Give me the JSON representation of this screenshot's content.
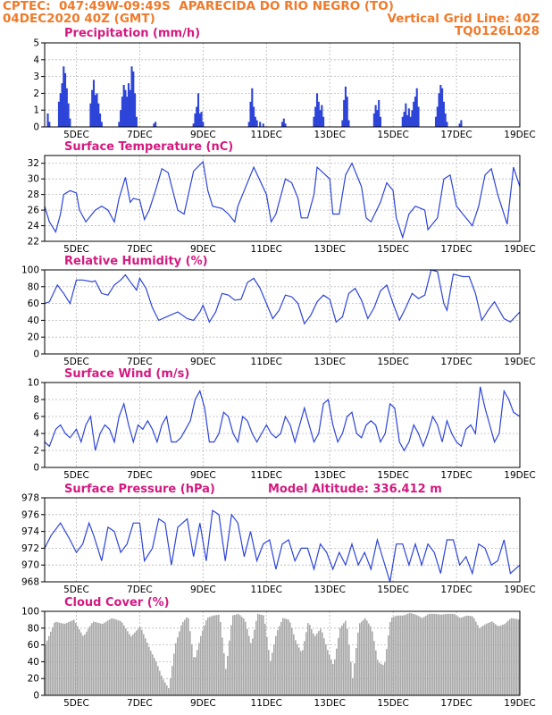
{
  "header": {
    "line1_left": "CPTEC:  047:49W-09:49S  APARECIDA DO RIO NEGRO (TO)",
    "line2_left": "04DEC2020 40Z (GMT)",
    "line2_right": "Vertical Grid Line: 40Z",
    "line3_right": "TQ0126L028"
  },
  "colors": {
    "header": "#f07a2a",
    "title": "#d4197f",
    "line": "#2d44d8",
    "bar": "#2d44d8",
    "cloud": "#a8a8a8"
  },
  "x_labels": [
    "5DEC",
    "7DEC",
    "9DEC",
    "11DEC",
    "13DEC",
    "15DEC",
    "17DEC",
    "19DEC"
  ],
  "chart_data": [
    {
      "type": "bar",
      "title": "Precipitation (mm/h)",
      "ylim": [
        0,
        5
      ],
      "yticks": [
        0,
        1,
        2,
        3,
        4,
        5
      ],
      "x_range_days": [
        4.0,
        19.0
      ],
      "x": [
        4.1,
        4.15,
        4.45,
        4.5,
        4.55,
        4.6,
        4.65,
        4.7,
        4.75,
        4.8,
        5.45,
        5.5,
        5.55,
        5.6,
        5.65,
        5.7,
        5.75,
        5.8,
        6.35,
        6.4,
        6.45,
        6.5,
        6.55,
        6.6,
        6.65,
        6.7,
        6.75,
        6.8,
        6.85,
        6.9,
        7.45,
        7.5,
        8.7,
        8.75,
        8.8,
        8.85,
        8.9,
        8.95,
        9.0,
        10.45,
        10.5,
        10.55,
        10.6,
        10.65,
        10.7,
        10.8,
        10.9,
        11.5,
        11.55,
        11.6,
        12.5,
        12.55,
        12.6,
        12.65,
        12.7,
        12.75,
        12.8,
        13.4,
        13.45,
        13.5,
        13.55,
        13.6,
        14.4,
        14.45,
        14.5,
        14.55,
        14.6,
        15.3,
        15.35,
        15.4,
        15.45,
        15.5,
        15.55,
        15.6,
        15.65,
        15.7,
        15.75,
        15.8,
        16.35,
        16.4,
        16.45,
        16.5,
        16.55,
        16.6,
        16.65,
        16.7,
        17.1,
        17.15
      ],
      "values": [
        0.8,
        0.3,
        1.5,
        2.0,
        2.6,
        3.6,
        3.2,
        2.3,
        1.4,
        0.5,
        1.4,
        2.2,
        2.8,
        1.9,
        2.0,
        1.4,
        0.8,
        0.3,
        0.3,
        1.0,
        1.8,
        2.5,
        2.2,
        1.8,
        2.6,
        2.2,
        3.6,
        3.3,
        2.0,
        0.6,
        0.2,
        0.3,
        0.2,
        0.8,
        1.2,
        2.0,
        0.8,
        0.9,
        0.3,
        0.3,
        1.5,
        2.3,
        1.2,
        0.6,
        0.4,
        0.3,
        0.2,
        0.3,
        0.5,
        0.2,
        0.6,
        1.2,
        2.0,
        1.5,
        1.0,
        1.3,
        0.6,
        0.4,
        1.6,
        2.4,
        1.8,
        0.4,
        0.8,
        1.3,
        1.0,
        1.6,
        0.6,
        0.6,
        0.9,
        1.4,
        0.7,
        1.1,
        0.6,
        1.0,
        1.5,
        1.8,
        2.3,
        1.2,
        0.6,
        1.2,
        2.0,
        2.5,
        2.3,
        1.5,
        0.8,
        0.3,
        0.2,
        0.4
      ]
    },
    {
      "type": "line",
      "title": "Surface Temperature (nC)",
      "ylim": [
        22,
        33
      ],
      "yticks": [
        22,
        24,
        26,
        28,
        30,
        32
      ],
      "x_range_days": [
        4.0,
        19.0
      ],
      "x": [
        4.0,
        4.15,
        4.35,
        4.5,
        4.6,
        4.8,
        5.0,
        5.1,
        5.3,
        5.6,
        5.8,
        6.0,
        6.2,
        6.35,
        6.55,
        6.7,
        6.8,
        7.0,
        7.15,
        7.3,
        7.5,
        7.7,
        7.9,
        8.2,
        8.4,
        8.7,
        9.0,
        9.15,
        9.3,
        9.6,
        9.8,
        10.0,
        10.1,
        10.3,
        10.5,
        10.6,
        11.0,
        11.15,
        11.3,
        11.6,
        11.8,
        12.0,
        12.1,
        12.3,
        12.5,
        12.6,
        13.0,
        13.1,
        13.3,
        13.5,
        13.7,
        14.0,
        14.15,
        14.3,
        14.6,
        14.8,
        15.0,
        15.1,
        15.3,
        15.5,
        15.7,
        16.0,
        16.1,
        16.4,
        16.6,
        16.8,
        17.0,
        17.2,
        17.5,
        17.7,
        17.9,
        18.1,
        18.3,
        18.6,
        18.8,
        19.0
      ],
      "values": [
        26.5,
        24.5,
        23.2,
        25.5,
        28,
        28.5,
        28.2,
        26,
        24.5,
        26,
        26.5,
        26,
        24.5,
        27.5,
        30.2,
        27,
        27.5,
        27.3,
        24.8,
        26,
        28.5,
        31.3,
        30.8,
        26,
        25.5,
        31,
        32.2,
        28.5,
        26.5,
        26.2,
        25.5,
        24.5,
        26.5,
        28.5,
        30.5,
        31.5,
        28,
        24.5,
        25.5,
        30,
        29.5,
        27.5,
        25,
        25,
        28,
        31.5,
        30,
        25.5,
        25.5,
        30.5,
        32,
        29,
        25,
        24.5,
        27,
        29.5,
        28.5,
        25,
        22.5,
        25.5,
        26.5,
        26,
        23.5,
        25,
        30,
        30.5,
        26.5,
        25.5,
        24,
        26.5,
        30.5,
        31.3,
        28,
        24.2,
        31.5,
        29
      ]
    },
    {
      "type": "line",
      "title": "Relative Humidity (%)",
      "ylim": [
        0,
        100
      ],
      "yticks": [
        0,
        20,
        40,
        60,
        80,
        100
      ],
      "x_range_days": [
        4.0,
        19.0
      ],
      "x": [
        4.0,
        4.15,
        4.4,
        4.6,
        4.8,
        5.0,
        5.2,
        5.5,
        5.6,
        5.8,
        6.0,
        6.2,
        6.4,
        6.55,
        6.7,
        6.9,
        7.0,
        7.2,
        7.4,
        7.6,
        7.9,
        8.2,
        8.5,
        8.7,
        8.9,
        9.0,
        9.2,
        9.4,
        9.6,
        9.8,
        10.0,
        10.2,
        10.4,
        10.6,
        10.8,
        11.0,
        11.2,
        11.4,
        11.6,
        11.8,
        12.0,
        12.2,
        12.4,
        12.6,
        12.8,
        13.0,
        13.2,
        13.4,
        13.6,
        13.8,
        14.0,
        14.2,
        14.4,
        14.6,
        14.8,
        15.0,
        15.2,
        15.4,
        15.6,
        15.8,
        16.0,
        16.2,
        16.4,
        16.6,
        16.7,
        16.9,
        17.2,
        17.4,
        17.6,
        17.8,
        18.0,
        18.2,
        18.5,
        18.7,
        19.0
      ],
      "values": [
        60,
        62,
        82,
        72,
        60,
        88,
        88,
        86,
        87,
        72,
        70,
        82,
        88,
        94,
        86,
        76,
        90,
        78,
        55,
        40,
        45,
        50,
        42,
        40,
        50,
        58,
        38,
        50,
        72,
        70,
        64,
        65,
        85,
        90,
        78,
        60,
        42,
        52,
        70,
        68,
        60,
        36,
        46,
        62,
        70,
        65,
        38,
        44,
        72,
        78,
        64,
        42,
        55,
        75,
        82,
        60,
        40,
        55,
        72,
        66,
        70,
        100,
        98,
        60,
        52,
        95,
        92,
        92,
        72,
        40,
        52,
        62,
        42,
        38,
        50
      ]
    },
    {
      "type": "line",
      "title": "Surface Wind (m/s)",
      "ylim": [
        0,
        10
      ],
      "yticks": [
        0,
        2,
        4,
        6,
        8,
        10
      ],
      "x_range_days": [
        4.0,
        19.0
      ],
      "x": [
        4.0,
        4.15,
        4.35,
        4.5,
        4.65,
        4.8,
        5.0,
        5.15,
        5.3,
        5.45,
        5.6,
        5.75,
        5.9,
        6.05,
        6.2,
        6.35,
        6.5,
        6.65,
        6.8,
        6.95,
        7.1,
        7.25,
        7.4,
        7.55,
        7.7,
        7.85,
        8.0,
        8.15,
        8.3,
        8.45,
        8.6,
        8.75,
        8.9,
        9.05,
        9.2,
        9.35,
        9.5,
        9.65,
        9.8,
        9.95,
        10.1,
        10.25,
        10.4,
        10.55,
        10.7,
        10.85,
        11.0,
        11.15,
        11.3,
        11.45,
        11.6,
        11.75,
        11.9,
        12.05,
        12.2,
        12.35,
        12.5,
        12.65,
        12.8,
        12.95,
        13.1,
        13.25,
        13.4,
        13.55,
        13.7,
        13.85,
        14.0,
        14.15,
        14.3,
        14.45,
        14.6,
        14.75,
        14.9,
        15.05,
        15.2,
        15.35,
        15.5,
        15.65,
        15.8,
        15.95,
        16.1,
        16.25,
        16.4,
        16.55,
        16.7,
        16.85,
        17.0,
        17.15,
        17.3,
        17.45,
        17.6,
        17.75,
        17.9,
        18.05,
        18.2,
        18.35,
        18.5,
        18.65,
        18.8,
        19.0
      ],
      "values": [
        3,
        2.5,
        4.5,
        5,
        4,
        3.5,
        4.5,
        3,
        5,
        6,
        2,
        4,
        5,
        4.5,
        3,
        6,
        7.5,
        5,
        3,
        5,
        4.5,
        5.5,
        4.5,
        3,
        5,
        6,
        3,
        3,
        3.5,
        4.5,
        5.5,
        8,
        9,
        7,
        3,
        3,
        4,
        6.5,
        6,
        4,
        3,
        6,
        5.5,
        4,
        3,
        4,
        5,
        4,
        3.5,
        4,
        6,
        5,
        3,
        5,
        7,
        5,
        3,
        4,
        7.5,
        8,
        5,
        3,
        4,
        6,
        6.5,
        4,
        3.5,
        5,
        5.5,
        5,
        3,
        4,
        7.5,
        7,
        3,
        2,
        3,
        5,
        4,
        2.5,
        4,
        6,
        5,
        3,
        5.5,
        4,
        3,
        2.5,
        4.5,
        5,
        4,
        9.5,
        7,
        5,
        3,
        4,
        9,
        8,
        6.5,
        6
      ]
    },
    {
      "type": "line",
      "title": "Surface Pressure (hPa)",
      "annotation": "Model Altitude: 336.412 m",
      "ylim": [
        968,
        978
      ],
      "yticks": [
        968,
        970,
        972,
        974,
        976,
        978
      ],
      "x_range_days": [
        4.0,
        19.0
      ],
      "x": [
        4.0,
        4.2,
        4.5,
        4.8,
        5.0,
        5.2,
        5.4,
        5.55,
        5.8,
        6.0,
        6.2,
        6.4,
        6.6,
        6.8,
        7.0,
        7.15,
        7.4,
        7.6,
        7.8,
        8.0,
        8.2,
        8.5,
        8.7,
        8.9,
        9.1,
        9.3,
        9.5,
        9.7,
        9.9,
        10.1,
        10.3,
        10.5,
        10.7,
        10.9,
        11.1,
        11.3,
        11.5,
        11.7,
        11.9,
        12.1,
        12.3,
        12.5,
        12.7,
        12.9,
        13.1,
        13.3,
        13.5,
        13.7,
        13.9,
        14.1,
        14.3,
        14.5,
        14.7,
        14.9,
        15.1,
        15.3,
        15.5,
        15.7,
        15.9,
        16.1,
        16.3,
        16.5,
        16.7,
        16.9,
        17.1,
        17.3,
        17.5,
        17.7,
        17.9,
        18.1,
        18.3,
        18.5,
        18.7,
        19.0
      ],
      "values": [
        972,
        973.5,
        975,
        973,
        971.5,
        972.5,
        975,
        973.5,
        970.5,
        974.5,
        974,
        971.5,
        972.5,
        975,
        975,
        970.5,
        972,
        975.5,
        975,
        970,
        974.5,
        975.5,
        971,
        975,
        970.5,
        976.5,
        976,
        970.5,
        976,
        975,
        971,
        974,
        970.5,
        972.5,
        973,
        969.5,
        972.5,
        973,
        970.5,
        972,
        972,
        969.5,
        972.5,
        971.5,
        969.5,
        971.5,
        970,
        972.5,
        970,
        971.5,
        969.5,
        973,
        970.5,
        968,
        972.5,
        972.5,
        970,
        972.5,
        970,
        972.5,
        971.5,
        969,
        973,
        973,
        970,
        971,
        969,
        972.5,
        972,
        970,
        970.5,
        973,
        969,
        970
      ]
    },
    {
      "type": "area",
      "title": "Cloud Cover (%)",
      "ylim": [
        0,
        100
      ],
      "yticks": [
        0,
        20,
        40,
        60,
        80,
        100
      ],
      "x_range_days": [
        4.0,
        19.0
      ],
      "x": [
        4.0,
        4.3,
        4.6,
        4.9,
        5.2,
        5.5,
        5.8,
        6.1,
        6.4,
        6.7,
        7.0,
        7.3,
        7.5,
        7.7,
        7.9,
        8.1,
        8.3,
        8.5,
        8.7,
        8.9,
        9.1,
        9.3,
        9.5,
        9.7,
        9.9,
        10.1,
        10.3,
        10.5,
        10.7,
        10.9,
        11.1,
        11.3,
        11.5,
        11.7,
        11.9,
        12.1,
        12.3,
        12.5,
        12.7,
        12.9,
        13.1,
        13.3,
        13.5,
        13.7,
        13.9,
        14.1,
        14.3,
        14.5,
        14.7,
        14.9,
        15.1,
        15.3,
        15.5,
        15.7,
        15.9,
        16.1,
        16.3,
        16.5,
        16.7,
        16.9,
        17.1,
        17.3,
        17.5,
        17.7,
        17.9,
        18.1,
        18.3,
        18.5,
        18.7,
        19.0
      ],
      "values": [
        60,
        88,
        85,
        90,
        70,
        88,
        85,
        92,
        88,
        70,
        82,
        55,
        40,
        20,
        8,
        60,
        85,
        95,
        40,
        70,
        92,
        95,
        96,
        30,
        95,
        97,
        90,
        60,
        97,
        95,
        40,
        75,
        92,
        90,
        65,
        50,
        88,
        70,
        80,
        55,
        35,
        80,
        90,
        20,
        85,
        92,
        80,
        40,
        35,
        92,
        95,
        95,
        98,
        96,
        92,
        97,
        97,
        96,
        97,
        97,
        92,
        95,
        94,
        80,
        85,
        88,
        82,
        85,
        92,
        90
      ]
    }
  ]
}
